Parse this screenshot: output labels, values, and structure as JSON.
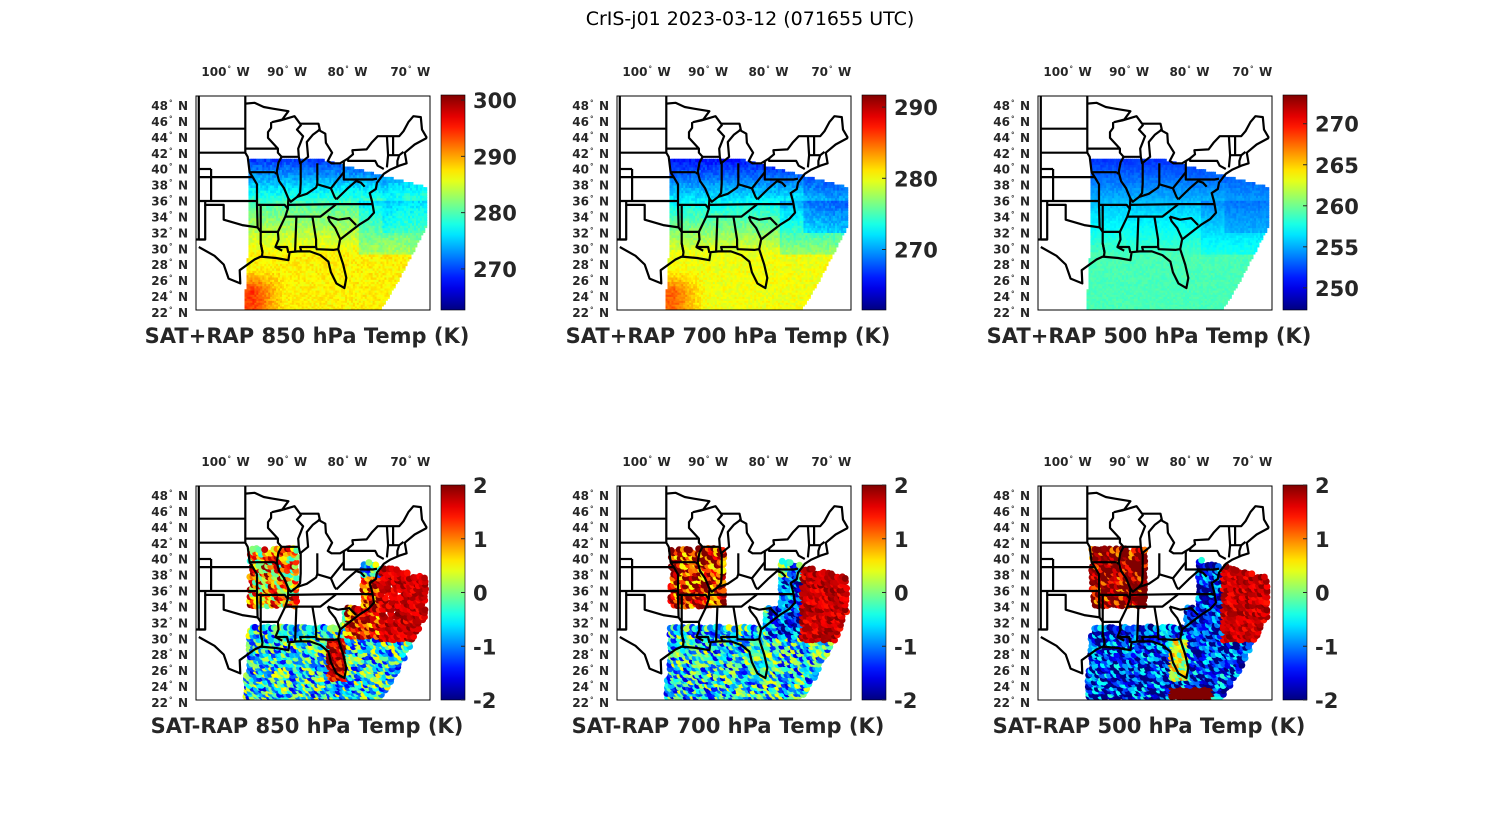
{
  "figure": {
    "title": "CrIS-j01 2023-03-12 (071655 UTC)"
  },
  "chart_data": [
    {
      "type": "heatmap",
      "title": "SAT+RAP 850 hPa Temp (K)",
      "colormap": "jet",
      "clim": [
        262.7,
        300.9
      ],
      "colorbar_ticks": [
        "270",
        "280",
        "290",
        "300"
      ],
      "colorbar_tick_values": [
        270,
        280,
        290,
        300
      ],
      "xlabel_ticks": [
        "100",
        "90",
        "80",
        "70"
      ],
      "xlabel_ticks_values": [
        -100,
        -90,
        -80,
        -70
      ],
      "xlabel_hemisphere": "W",
      "ylabel_ticks": [
        "48",
        "46",
        "44",
        "42",
        "40",
        "38",
        "36",
        "34",
        "32",
        "30",
        "28",
        "26",
        "24",
        "22"
      ],
      "ylabel_hemisphere": "N",
      "field": "total",
      "pattern": {
        "north": 270,
        "mid": 281,
        "south": 287,
        "gulf_west": 294,
        "atlantic": 272
      }
    },
    {
      "type": "heatmap",
      "title": "SAT+RAP 700 hPa Temp (K)",
      "colormap": "jet",
      "clim": [
        261.5,
        291.7
      ],
      "colorbar_ticks": [
        "270",
        "280",
        "290"
      ],
      "colorbar_tick_values": [
        270,
        280,
        290
      ],
      "xlabel_ticks": [
        "100",
        "90",
        "80",
        "70"
      ],
      "xlabel_ticks_values": [
        -100,
        -90,
        -80,
        -70
      ],
      "xlabel_hemisphere": "W",
      "ylabel_ticks": [
        "48",
        "46",
        "44",
        "42",
        "40",
        "38",
        "36",
        "34",
        "32",
        "30",
        "28",
        "26",
        "24",
        "22"
      ],
      "ylabel_hemisphere": "N",
      "field": "total",
      "pattern": {
        "north": 266,
        "mid": 274,
        "south": 280,
        "gulf_west": 285,
        "atlantic": 265
      }
    },
    {
      "type": "heatmap",
      "title": "SAT+RAP 500 hPa Temp (K)",
      "colormap": "jet",
      "clim": [
        247.3,
        273.5
      ],
      "colorbar_ticks": [
        "270",
        "265",
        "260",
        "255",
        "250"
      ],
      "colorbar_tick_values": [
        270,
        265,
        260,
        255,
        250
      ],
      "xlabel_ticks": [
        "100",
        "90",
        "80",
        "70"
      ],
      "xlabel_ticks_values": [
        -100,
        -90,
        -80,
        -70
      ],
      "xlabel_hemisphere": "W",
      "ylabel_ticks": [
        "48",
        "46",
        "44",
        "42",
        "40",
        "38",
        "36",
        "34",
        "32",
        "30",
        "28",
        "26",
        "24",
        "22"
      ],
      "ylabel_hemisphere": "N",
      "field": "total",
      "pattern": {
        "north": 252,
        "mid": 256,
        "south": 259,
        "gulf_west": 259,
        "atlantic": 252
      }
    },
    {
      "type": "heatmap",
      "title": "SAT-RAP 850 hPa Temp (K)",
      "colormap": "jet",
      "clim": [
        -2,
        2
      ],
      "colorbar_ticks": [
        "2",
        "1",
        "0",
        "-1",
        "-2"
      ],
      "colorbar_tick_values": [
        2,
        1,
        0,
        -1,
        -2
      ],
      "xlabel_ticks": [
        "100",
        "90",
        "80",
        "70"
      ],
      "xlabel_ticks_values": [
        -100,
        -90,
        -80,
        -70
      ],
      "xlabel_hemisphere": "W",
      "ylabel_ticks": [
        "48",
        "46",
        "44",
        "42",
        "40",
        "38",
        "36",
        "34",
        "32",
        "30",
        "28",
        "26",
        "24",
        "22"
      ],
      "ylabel_hemisphere": "N",
      "field": "diff",
      "pattern": {
        "atlantic": 2,
        "florida": 1.8,
        "gulf": -0.5,
        "midwest": 0.8,
        "coast": 1.5
      }
    },
    {
      "type": "heatmap",
      "title": "SAT-RAP 700 hPa Temp (K)",
      "colormap": "jet",
      "clim": [
        -2,
        2
      ],
      "colorbar_ticks": [
        "2",
        "1",
        "0",
        "-1",
        "-2"
      ],
      "colorbar_tick_values": [
        2,
        1,
        0,
        -1,
        -2
      ],
      "xlabel_ticks": [
        "100",
        "90",
        "80",
        "70"
      ],
      "xlabel_ticks_values": [
        -100,
        -90,
        -80,
        -70
      ],
      "xlabel_hemisphere": "W",
      "ylabel_ticks": [
        "48",
        "46",
        "44",
        "42",
        "40",
        "38",
        "36",
        "34",
        "32",
        "30",
        "28",
        "26",
        "24",
        "22"
      ],
      "ylabel_hemisphere": "N",
      "field": "diff",
      "pattern": {
        "atlantic": 2,
        "florida": -0.3,
        "gulf": -0.6,
        "midwest": 1.6,
        "coast": -1.2
      }
    },
    {
      "type": "heatmap",
      "title": "SAT-RAP 500 hPa Temp (K)",
      "colormap": "jet",
      "clim": [
        -2,
        2
      ],
      "colorbar_ticks": [
        "2",
        "1",
        "0",
        "-1",
        "-2"
      ],
      "colorbar_tick_values": [
        2,
        1,
        0,
        -1,
        -2
      ],
      "xlabel_ticks": [
        "100",
        "90",
        "80",
        "70"
      ],
      "xlabel_ticks_values": [
        -100,
        -90,
        -80,
        -70
      ],
      "xlabel_hemisphere": "W",
      "ylabel_ticks": [
        "48",
        "46",
        "44",
        "42",
        "40",
        "38",
        "36",
        "34",
        "32",
        "30",
        "28",
        "26",
        "24",
        "22"
      ],
      "ylabel_hemisphere": "N",
      "field": "diff",
      "pattern": {
        "atlantic": 2,
        "florida": 0.3,
        "gulf": -1.4,
        "midwest": 2,
        "coast": -1.5
      }
    }
  ]
}
